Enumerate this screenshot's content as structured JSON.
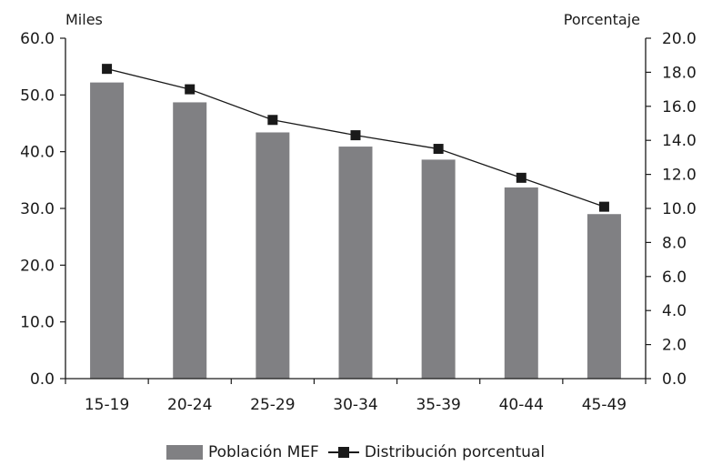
{
  "chart_data": {
    "type": "bar",
    "categories": [
      "15-19",
      "20-24",
      "25-29",
      "30-34",
      "35-39",
      "40-44",
      "45-49"
    ],
    "series": [
      {
        "name": "Población MEF",
        "type": "bar",
        "axis": "left",
        "values": [
          52.2,
          48.7,
          43.4,
          40.9,
          38.6,
          33.7,
          29.0
        ]
      },
      {
        "name": "Distribución porcentual",
        "type": "line",
        "axis": "right",
        "values": [
          18.2,
          17.0,
          15.2,
          14.3,
          13.5,
          11.8,
          10.1
        ]
      }
    ],
    "y_left": {
      "label": "Miles",
      "lim": [
        0,
        60
      ],
      "ticks": [
        "0.0",
        "10.0",
        "20.0",
        "30.0",
        "40.0",
        "50.0",
        "60.0"
      ]
    },
    "y_right": {
      "label": "Porcentaje",
      "lim": [
        0,
        20
      ],
      "ticks": [
        "0.0",
        "2.0",
        "4.0",
        "6.0",
        "8.0",
        "10.0",
        "12.0",
        "14.0",
        "16.0",
        "18.0",
        "20.0"
      ]
    },
    "grid": false,
    "legend_position": "bottom",
    "colors": {
      "bar": "#808083",
      "line": "#1a1a1a",
      "axis": "#1a1a1a"
    }
  }
}
